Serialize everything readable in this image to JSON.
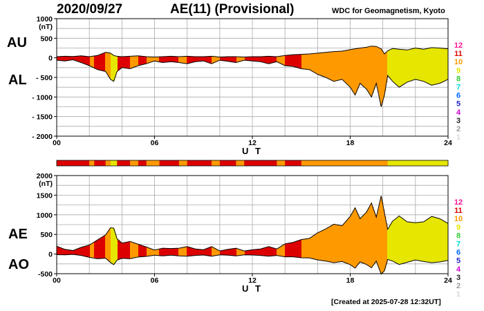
{
  "header": {
    "date": "2020/09/27",
    "title": "AE(11) (Provisional)",
    "org": "WDC for Geomagnetism, Kyoto"
  },
  "footer": {
    "created": "[Created at 2025-07-28 12:32UT]"
  },
  "labels": {
    "au": "AU",
    "al": "AL",
    "ae": "AE",
    "ao": "AO"
  },
  "colors": {
    "1": "#d9d9d9",
    "2": "#999999",
    "3": "#222222",
    "4": "#cc00cc",
    "5": "#2222cc",
    "6": "#0066ff",
    "7": "#00dddd",
    "8": "#33cc33",
    "9": "#e6e600",
    "10": "#ff9900",
    "11": "#dd0000",
    "12": "#ff1493"
  },
  "chart_data": [
    {
      "type": "area",
      "title": "AU / AL",
      "xlabel": "U T",
      "ylabel": "(nT)",
      "xlim": [
        0,
        24
      ],
      "ylim": [
        -2000,
        1000
      ],
      "xticks": [
        "00",
        "06",
        "12",
        "18",
        "24"
      ],
      "yticks": [
        "1000",
        "500",
        "0",
        "- 500",
        "- 1000",
        "- 1500",
        "- 2000"
      ],
      "x": [
        0,
        0.5,
        1,
        1.5,
        2,
        2.5,
        3,
        3.3,
        3.5,
        3.7,
        4,
        4.5,
        5,
        5.5,
        6,
        6.5,
        7,
        7.5,
        8,
        8.5,
        9,
        9.5,
        10,
        10.5,
        11,
        11.5,
        12,
        12.5,
        13,
        13.5,
        14,
        14.5,
        15,
        15.5,
        16,
        16.5,
        17,
        17.5,
        18,
        18.3,
        18.6,
        19,
        19.3,
        19.6,
        19.9,
        20.1,
        20.3,
        20.6,
        21,
        21.5,
        22,
        22.5,
        23,
        23.5,
        24
      ],
      "series": [
        {
          "name": "AU",
          "values": [
            30,
            40,
            35,
            50,
            30,
            60,
            140,
            120,
            60,
            40,
            30,
            40,
            50,
            30,
            20,
            30,
            40,
            30,
            40,
            30,
            30,
            40,
            20,
            30,
            30,
            20,
            30,
            30,
            40,
            30,
            60,
            80,
            90,
            100,
            120,
            140,
            160,
            170,
            210,
            230,
            250,
            270,
            300,
            290,
            230,
            100,
            180,
            240,
            220,
            200,
            250,
            220,
            260,
            250,
            230
          ]
        },
        {
          "name": "AL",
          "values": [
            -60,
            -80,
            -50,
            -120,
            -200,
            -300,
            -350,
            -550,
            -600,
            -350,
            -250,
            -280,
            -200,
            -150,
            -80,
            -120,
            -100,
            -120,
            -150,
            -100,
            -80,
            -150,
            -60,
            -90,
            -120,
            -60,
            -80,
            -100,
            -150,
            -100,
            -200,
            -220,
            -280,
            -300,
            -420,
            -500,
            -600,
            -550,
            -750,
            -950,
            -650,
            -800,
            -1000,
            -650,
            -1250,
            -950,
            -450,
            -600,
            -750,
            -620,
            -550,
            -600,
            -700,
            -650,
            -550
          ]
        }
      ]
    },
    {
      "type": "area",
      "title": "AE / AO",
      "xlabel": "U T",
      "ylabel": "(nT)",
      "xlim": [
        0,
        24
      ],
      "ylim": [
        -500,
        2000
      ],
      "xticks": [
        "00",
        "06",
        "12",
        "18",
        "24"
      ],
      "yticks": [
        "2000",
        "1500",
        "1000",
        "500",
        "0",
        "-500"
      ],
      "x": [
        0,
        0.5,
        1,
        1.5,
        2,
        2.5,
        3,
        3.3,
        3.5,
        3.7,
        4,
        4.5,
        5,
        5.5,
        6,
        6.5,
        7,
        7.5,
        8,
        8.5,
        9,
        9.5,
        10,
        10.5,
        11,
        11.5,
        12,
        12.5,
        13,
        13.5,
        14,
        14.5,
        15,
        15.5,
        16,
        16.5,
        17,
        17.5,
        18,
        18.3,
        18.6,
        19,
        19.3,
        19.6,
        19.9,
        20.1,
        20.3,
        20.6,
        21,
        21.5,
        22,
        22.5,
        23,
        23.5,
        24
      ],
      "series": [
        {
          "name": "AE",
          "values": [
            200,
            120,
            90,
            170,
            230,
            360,
            490,
            670,
            660,
            390,
            280,
            320,
            250,
            180,
            100,
            150,
            140,
            150,
            190,
            130,
            110,
            190,
            80,
            120,
            150,
            80,
            110,
            130,
            190,
            130,
            260,
            300,
            370,
            400,
            540,
            640,
            760,
            720,
            960,
            1180,
            900,
            1070,
            1300,
            940,
            1480,
            1050,
            630,
            840,
            970,
            820,
            800,
            820,
            960,
            900,
            780
          ]
        },
        {
          "name": "AO",
          "values": [
            -15,
            -20,
            -8,
            -35,
            -85,
            -120,
            -105,
            -215,
            -270,
            -155,
            -110,
            -120,
            -75,
            -60,
            -30,
            -45,
            -30,
            -45,
            -55,
            -35,
            -25,
            -55,
            -20,
            -30,
            -45,
            -20,
            -25,
            -35,
            -55,
            -35,
            -70,
            -70,
            -95,
            -100,
            -150,
            -180,
            -220,
            -190,
            -270,
            -360,
            -200,
            -265,
            -350,
            -180,
            -510,
            -425,
            -135,
            -180,
            -265,
            -210,
            -150,
            -190,
            -220,
            -200,
            -160
          ]
        }
      ]
    }
  ],
  "activity_bar": {
    "segments": [
      {
        "start": 0,
        "end": 2.0,
        "level": 11
      },
      {
        "start": 2.0,
        "end": 2.3,
        "level": 10
      },
      {
        "start": 2.3,
        "end": 3.0,
        "level": 11
      },
      {
        "start": 3.0,
        "end": 3.3,
        "level": 10
      },
      {
        "start": 3.3,
        "end": 3.7,
        "level": 9
      },
      {
        "start": 3.7,
        "end": 4.5,
        "level": 11
      },
      {
        "start": 4.5,
        "end": 5.0,
        "level": 10
      },
      {
        "start": 5.0,
        "end": 5.5,
        "level": 11
      },
      {
        "start": 5.5,
        "end": 6.3,
        "level": 10
      },
      {
        "start": 6.3,
        "end": 7.5,
        "level": 11
      },
      {
        "start": 7.5,
        "end": 8.0,
        "level": 10
      },
      {
        "start": 8.0,
        "end": 9.5,
        "level": 11
      },
      {
        "start": 9.5,
        "end": 10.0,
        "level": 10
      },
      {
        "start": 10.0,
        "end": 11.0,
        "level": 11
      },
      {
        "start": 11.0,
        "end": 11.5,
        "level": 10
      },
      {
        "start": 11.5,
        "end": 13.5,
        "level": 11
      },
      {
        "start": 13.5,
        "end": 14.0,
        "level": 10
      },
      {
        "start": 14.0,
        "end": 15.0,
        "level": 11
      },
      {
        "start": 15.0,
        "end": 20.3,
        "level": 10
      },
      {
        "start": 20.3,
        "end": 24.0,
        "level": 9
      }
    ]
  },
  "legend": [
    "12",
    "11",
    "10",
    "9",
    "8",
    "7",
    "6",
    "5",
    "4",
    "3",
    "2",
    "1"
  ]
}
